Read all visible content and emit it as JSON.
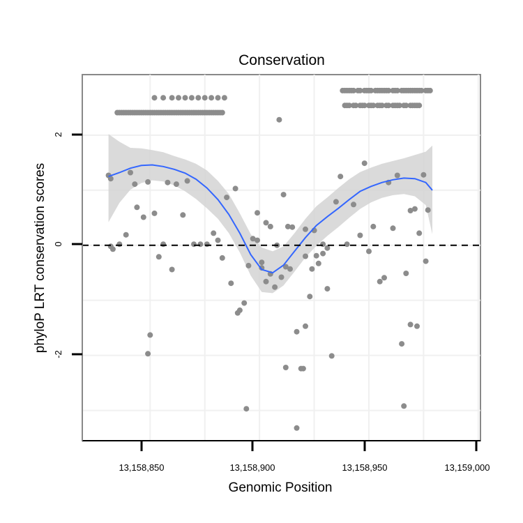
{
  "chart_data": {
    "type": "scatter",
    "title": "Conservation",
    "xlabel": "Genomic Position",
    "ylabel": "phyloP LRT conservation scores",
    "xlim": [
      13158819,
      13159001
    ],
    "ylim": [
      -3.55,
      3.1
    ],
    "x_ticks": [
      13158850,
      13158900,
      13158950,
      13159000
    ],
    "x_tick_labels": [
      "13,158,850",
      "13,158,900",
      "13,158,950",
      "13,159,000"
    ],
    "y_ticks": [
      -2,
      0,
      2
    ],
    "y_tick_labels": [
      "-2",
      "0",
      "2"
    ],
    "minor_y_gridlines": [
      -3,
      -1,
      1
    ],
    "minor_x_gridlines": [
      13158875,
      13158925,
      13158975
    ],
    "reference_line": {
      "y": 0,
      "style": "dashed",
      "color": "#000000"
    },
    "colors": {
      "points": "#8c8c8c",
      "smooth_line": "#3366ff",
      "confidence_band": "#d3d3d3",
      "panel_border": "#888888",
      "grid": "#f0f0f0"
    },
    "points": [
      [
        13158831,
        1.27
      ],
      [
        13158832,
        1.21
      ],
      [
        13158833,
        -0.07
      ],
      [
        13158835,
        2.41
      ],
      [
        13158836,
        2.41
      ],
      [
        13158837,
        2.41
      ],
      [
        13158838,
        2.41
      ],
      [
        13158839,
        2.41
      ],
      [
        13158840,
        2.41
      ],
      [
        13158841,
        2.41
      ],
      [
        13158842,
        2.41
      ],
      [
        13158843,
        2.41
      ],
      [
        13158844,
        2.41
      ],
      [
        13158845,
        2.41
      ],
      [
        13158846,
        2.41
      ],
      [
        13158847,
        2.41
      ],
      [
        13158848,
        2.41
      ],
      [
        13158849,
        2.41
      ],
      [
        13158850,
        2.41
      ],
      [
        13158851,
        2.41
      ],
      [
        13158852,
        2.41
      ],
      [
        13158853,
        2.41
      ],
      [
        13158854,
        2.41
      ],
      [
        13158855,
        2.41
      ],
      [
        13158856,
        2.41
      ],
      [
        13158857,
        2.41
      ],
      [
        13158858,
        2.41
      ],
      [
        13158859,
        2.41
      ],
      [
        13158860,
        2.41
      ],
      [
        13158861,
        2.41
      ],
      [
        13158862,
        2.41
      ],
      [
        13158863,
        2.41
      ],
      [
        13158864,
        2.41
      ],
      [
        13158865,
        2.41
      ],
      [
        13158866,
        2.41
      ],
      [
        13158867,
        2.41
      ],
      [
        13158868,
        2.41
      ],
      [
        13158869,
        2.41
      ],
      [
        13158870,
        2.41
      ],
      [
        13158871,
        2.41
      ],
      [
        13158872,
        2.41
      ],
      [
        13158873,
        2.41
      ],
      [
        13158874,
        2.41
      ],
      [
        13158875,
        2.41
      ],
      [
        13158876,
        2.41
      ],
      [
        13158877,
        2.41
      ],
      [
        13158878,
        2.41
      ],
      [
        13158879,
        2.41
      ],
      [
        13158880,
        2.41
      ],
      [
        13158881,
        2.41
      ],
      [
        13158882,
        2.41
      ],
      [
        13158883,
        2.41
      ],
      [
        13158852,
        2.68
      ],
      [
        13158856,
        2.68
      ],
      [
        13158860,
        2.68
      ],
      [
        13158863,
        2.68
      ],
      [
        13158866,
        2.68
      ],
      [
        13158869,
        2.68
      ],
      [
        13158872,
        2.68
      ],
      [
        13158875,
        2.68
      ],
      [
        13158878,
        2.68
      ],
      [
        13158881,
        2.68
      ],
      [
        13158884,
        2.68
      ],
      [
        13158832,
        -0.02
      ],
      [
        13158836,
        0.02
      ],
      [
        13158839,
        0.19
      ],
      [
        13158841,
        1.32
      ],
      [
        13158843,
        1.11
      ],
      [
        13158844,
        0.69
      ],
      [
        13158847,
        0.51
      ],
      [
        13158849,
        1.15
      ],
      [
        13158852,
        0.58
      ],
      [
        13158854,
        -0.21
      ],
      [
        13158856,
        0.02
      ],
      [
        13158858,
        1.14
      ],
      [
        13158860,
        -0.44
      ],
      [
        13158862,
        1.11
      ],
      [
        13158865,
        0.55
      ],
      [
        13158867,
        1.17
      ],
      [
        13158870,
        0.02
      ],
      [
        13158873,
        0.02
      ],
      [
        13158876,
        0.02
      ],
      [
        13158879,
        0.22
      ],
      [
        13158881,
        0.09
      ],
      [
        13158883,
        -0.23
      ],
      [
        13158885,
        0.87
      ],
      [
        13158887,
        -0.69
      ],
      [
        13158889,
        1.03
      ],
      [
        13158891,
        -1.18
      ],
      [
        13158893,
        -1.05
      ],
      [
        13158895,
        -0.37
      ],
      [
        13158897,
        0.12
      ],
      [
        13158899,
        0.59
      ],
      [
        13158901,
        -0.41
      ],
      [
        13158903,
        0.41
      ],
      [
        13158905,
        0.34
      ],
      [
        13158907,
        -0.76
      ],
      [
        13158909,
        2.28
      ],
      [
        13158911,
        0.92
      ],
      [
        13158913,
        0.34
      ],
      [
        13158915,
        0.33
      ],
      [
        13158917,
        -1.57
      ],
      [
        13158919,
        -2.24
      ],
      [
        13158921,
        0.29
      ],
      [
        13158923,
        -0.93
      ],
      [
        13158925,
        0.27
      ],
      [
        13158927,
        -0.33
      ],
      [
        13158929,
        0.02
      ],
      [
        13158931,
        -0.79
      ],
      [
        13158933,
        -2.01
      ],
      [
        13158935,
        0.79
      ],
      [
        13158937,
        1.25
      ],
      [
        13158940,
        0.02
      ],
      [
        13158943,
        0.74
      ],
      [
        13158946,
        0.18
      ],
      [
        13158948,
        1.49
      ],
      [
        13158950,
        -0.11
      ],
      [
        13158952,
        0.34
      ],
      [
        13158955,
        -0.66
      ],
      [
        13158957,
        -0.59
      ],
      [
        13158959,
        1.14
      ],
      [
        13158961,
        0.31
      ],
      [
        13158963,
        1.27
      ],
      [
        13158965,
        -1.79
      ],
      [
        13158967,
        -0.51
      ],
      [
        13158969,
        0.63
      ],
      [
        13158971,
        0.66
      ],
      [
        13158973,
        0.22
      ],
      [
        13158975,
        1.28
      ],
      [
        13158976,
        -0.29
      ],
      [
        13158977,
        0.64
      ],
      [
        13158969,
        -1.44
      ],
      [
        13158972,
        -1.47
      ],
      [
        13158966,
        -2.92
      ],
      [
        13158849,
        -1.97
      ],
      [
        13158850,
        -1.63
      ],
      [
        13158890,
        -1.23
      ],
      [
        13158894,
        -2.97
      ],
      [
        13158912,
        -2.22
      ],
      [
        13158917,
        -3.32
      ],
      [
        13158920,
        -2.24
      ],
      [
        13158921,
        -1.47
      ],
      [
        13158910,
        -0.58
      ],
      [
        13158912,
        -0.39
      ],
      [
        13158914,
        -0.43
      ],
      [
        13158899,
        0.09
      ],
      [
        13158901,
        -0.31
      ],
      [
        13158903,
        -0.66
      ],
      [
        13158905,
        -0.52
      ],
      [
        13158908,
        0.0
      ],
      [
        13158921,
        -0.2
      ],
      [
        13158924,
        -0.43
      ],
      [
        13158926,
        -0.19
      ],
      [
        13158929,
        -0.15
      ],
      [
        13158931,
        -0.05
      ],
      [
        13158938,
        2.81
      ],
      [
        13158939,
        2.81
      ],
      [
        13158940,
        2.81
      ],
      [
        13158941,
        2.81
      ],
      [
        13158942,
        2.81
      ],
      [
        13158943,
        2.81
      ],
      [
        13158945,
        2.81
      ],
      [
        13158946,
        2.81
      ],
      [
        13158948,
        2.81
      ],
      [
        13158949,
        2.81
      ],
      [
        13158950,
        2.81
      ],
      [
        13158951,
        2.81
      ],
      [
        13158953,
        2.81
      ],
      [
        13158954,
        2.81
      ],
      [
        13158955,
        2.81
      ],
      [
        13158956,
        2.81
      ],
      [
        13158957,
        2.81
      ],
      [
        13158958,
        2.81
      ],
      [
        13158959,
        2.81
      ],
      [
        13158961,
        2.81
      ],
      [
        13158962,
        2.81
      ],
      [
        13158963,
        2.81
      ],
      [
        13158965,
        2.81
      ],
      [
        13158966,
        2.81
      ],
      [
        13158967,
        2.81
      ],
      [
        13158968,
        2.81
      ],
      [
        13158969,
        2.81
      ],
      [
        13158970,
        2.81
      ],
      [
        13158971,
        2.81
      ],
      [
        13158972,
        2.81
      ],
      [
        13158973,
        2.81
      ],
      [
        13158974,
        2.81
      ],
      [
        13158976,
        2.81
      ],
      [
        13158977,
        2.81
      ],
      [
        13158978,
        2.81
      ],
      [
        13158939,
        2.54
      ],
      [
        13158940,
        2.54
      ],
      [
        13158941,
        2.54
      ],
      [
        13158943,
        2.54
      ],
      [
        13158944,
        2.54
      ],
      [
        13158946,
        2.54
      ],
      [
        13158947,
        2.54
      ],
      [
        13158948,
        2.54
      ],
      [
        13158950,
        2.54
      ],
      [
        13158951,
        2.54
      ],
      [
        13158952,
        2.54
      ],
      [
        13158954,
        2.54
      ],
      [
        13158955,
        2.54
      ],
      [
        13158956,
        2.54
      ],
      [
        13158958,
        2.54
      ],
      [
        13158959,
        2.54
      ],
      [
        13158961,
        2.54
      ],
      [
        13158962,
        2.54
      ],
      [
        13158963,
        2.54
      ],
      [
        13158964,
        2.54
      ],
      [
        13158966,
        2.54
      ],
      [
        13158967,
        2.54
      ],
      [
        13158969,
        2.54
      ],
      [
        13158970,
        2.54
      ],
      [
        13158971,
        2.54
      ],
      [
        13158972,
        2.54
      ],
      [
        13158973,
        2.54
      ]
    ],
    "smooth_line": {
      "x": [
        13158831,
        13158836,
        13158841,
        13158846,
        13158851,
        13158856,
        13158861,
        13158866,
        13158871,
        13158876,
        13158881,
        13158886,
        13158891,
        13158896,
        13158901,
        13158906,
        13158911,
        13158916,
        13158921,
        13158926,
        13158931,
        13158936,
        13158941,
        13158946,
        13158951,
        13158956,
        13158961,
        13158966,
        13158971,
        13158976,
        13158979
      ],
      "y": [
        1.25,
        1.32,
        1.4,
        1.45,
        1.46,
        1.43,
        1.38,
        1.31,
        1.2,
        1.04,
        0.83,
        0.56,
        0.22,
        -0.17,
        -0.44,
        -0.5,
        -0.36,
        -0.11,
        0.14,
        0.36,
        0.52,
        0.67,
        0.83,
        0.98,
        1.07,
        1.14,
        1.19,
        1.22,
        1.21,
        1.14,
        1.0
      ]
    },
    "confidence_band": {
      "x": [
        13158831,
        13158836,
        13158841,
        13158846,
        13158851,
        13158856,
        13158861,
        13158866,
        13158871,
        13158876,
        13158881,
        13158886,
        13158891,
        13158896,
        13158901,
        13158906,
        13158911,
        13158916,
        13158921,
        13158926,
        13158931,
        13158936,
        13158941,
        13158946,
        13158951,
        13158956,
        13158961,
        13158966,
        13158971,
        13158976,
        13158979
      ],
      "lower": [
        0.42,
        0.77,
        1.01,
        1.13,
        1.18,
        1.16,
        1.09,
        0.98,
        0.84,
        0.67,
        0.48,
        0.22,
        -0.13,
        -0.55,
        -0.85,
        -0.87,
        -0.73,
        -0.48,
        -0.22,
        -0.01,
        0.17,
        0.33,
        0.5,
        0.66,
        0.78,
        0.86,
        0.91,
        0.93,
        0.89,
        0.73,
        0.2
      ],
      "upper": [
        2.02,
        1.88,
        1.77,
        1.76,
        1.73,
        1.69,
        1.62,
        1.56,
        1.48,
        1.36,
        1.17,
        0.93,
        0.58,
        0.2,
        -0.04,
        -0.11,
        -0.02,
        0.22,
        0.48,
        0.71,
        0.87,
        1.04,
        1.2,
        1.33,
        1.41,
        1.48,
        1.53,
        1.58,
        1.64,
        1.7,
        1.81
      ]
    }
  }
}
